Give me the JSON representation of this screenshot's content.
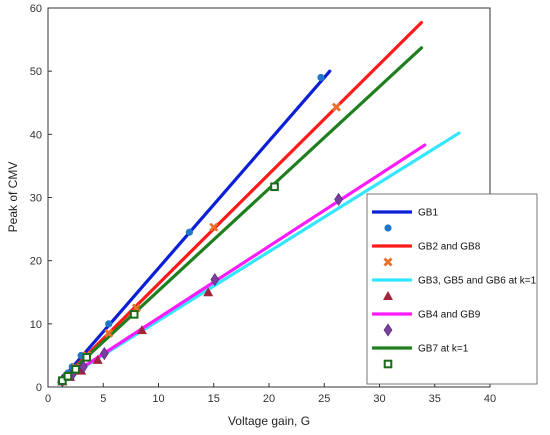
{
  "chart_data": {
    "type": "scatter",
    "title": "",
    "xlabel": "Voltage gain, G",
    "ylabel": "Peak of CMV",
    "xlim": [
      0,
      40
    ],
    "ylim": [
      0,
      60
    ],
    "x_ticks": [
      "0",
      "5",
      "10",
      "15",
      "20",
      "25",
      "30",
      "35",
      "40"
    ],
    "y_ticks": [
      "0",
      "10",
      "20",
      "30",
      "40",
      "50",
      "60"
    ],
    "grid": false,
    "legend_placement": "lower-right",
    "series": [
      {
        "name": "GB1",
        "line_color": "#0a1fd6",
        "marker_color": "#1f77c8",
        "marker": "circle",
        "line": [
          [
            1,
            0.7
          ],
          [
            25.5,
            50
          ]
        ],
        "points": [
          [
            1.2,
            1.0
          ],
          [
            1.5,
            1.6
          ],
          [
            1.8,
            2.2
          ],
          [
            2.2,
            3.2
          ],
          [
            3.0,
            5.0
          ],
          [
            5.5,
            10.0
          ],
          [
            12.8,
            24.5
          ],
          [
            24.7,
            49
          ]
        ]
      },
      {
        "name": "GB2 and GB8",
        "line_color": "#ff1a1a",
        "marker_color": "#e8702a",
        "marker": "x",
        "line": [
          [
            1,
            0.7
          ],
          [
            33.8,
            57.7
          ]
        ],
        "points": [
          [
            1.3,
            1.0
          ],
          [
            1.8,
            1.8
          ],
          [
            2.5,
            3.0
          ],
          [
            3.5,
            5.0
          ],
          [
            5.5,
            8.5
          ],
          [
            8.0,
            12.5
          ],
          [
            15.0,
            25.3
          ],
          [
            26.1,
            44.3
          ]
        ]
      },
      {
        "name": "GB3, GB5 and GB6 at k=1",
        "line_color": "#33e6ff",
        "marker_color": "#a3243a",
        "marker": "triangle",
        "line": [
          [
            1,
            0.7
          ],
          [
            37.2,
            40.2
          ]
        ],
        "points": [
          [
            1.3,
            0.9
          ],
          [
            2.0,
            1.6
          ],
          [
            3.0,
            2.6
          ],
          [
            4.5,
            4.3
          ],
          [
            8.5,
            9.0
          ],
          [
            14.5,
            15.0
          ]
        ]
      },
      {
        "name": "GB4 and GB9",
        "line_color": "#ff1aff",
        "marker_color": "#7a3f9e",
        "marker": "diamond",
        "line": [
          [
            1,
            0.7
          ],
          [
            34.1,
            38.3
          ]
        ],
        "points": [
          [
            1.3,
            1.0
          ],
          [
            2.2,
            2.0
          ],
          [
            3.2,
            3.2
          ],
          [
            5.1,
            5.3
          ],
          [
            15.1,
            17.0
          ],
          [
            26.3,
            29.7
          ]
        ]
      },
      {
        "name": "GB7 at k=1",
        "line_color": "#1f7f1f",
        "marker_color": "#1a6b1a",
        "marker": "square",
        "line": [
          [
            1,
            0.7
          ],
          [
            33.8,
            53.7
          ]
        ],
        "points": [
          [
            1.3,
            1.0
          ],
          [
            1.8,
            1.7
          ],
          [
            2.5,
            2.8
          ],
          [
            3.5,
            4.7
          ],
          [
            7.8,
            11.5
          ],
          [
            20.5,
            31.7
          ]
        ]
      }
    ]
  }
}
